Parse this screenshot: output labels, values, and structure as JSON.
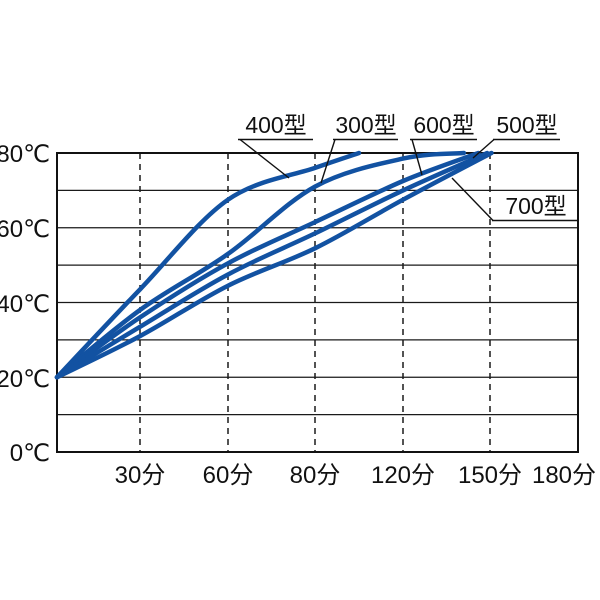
{
  "chart_data": {
    "type": "line",
    "title": "",
    "x_axis": {
      "unit": "分",
      "tick_times": [
        0,
        30,
        60,
        80,
        120,
        150,
        180
      ],
      "tick_labels": [
        "30分",
        "60分",
        "80分",
        "120分",
        "150分",
        "180分"
      ],
      "gridlines_dashed": true
    },
    "y_axis": {
      "unit": "℃",
      "min": 0,
      "max": 80,
      "grid_step": 10,
      "tick_values": [
        80,
        60,
        40,
        20,
        0
      ],
      "tick_labels": [
        "80℃",
        "60℃",
        "40℃",
        "20℃",
        "0℃"
      ]
    },
    "start_temperature_c": 20,
    "line_color": "#1252a2",
    "series": [
      {
        "name": "400型",
        "points": [
          [
            0,
            20
          ],
          [
            30,
            43.5
          ],
          [
            60,
            67.5
          ],
          [
            80,
            76
          ],
          [
            100,
            80
          ]
        ]
      },
      {
        "name": "300型",
        "points": [
          [
            0,
            20
          ],
          [
            30,
            38
          ],
          [
            60,
            53
          ],
          [
            80,
            71
          ],
          [
            120,
            78.5
          ],
          [
            141,
            80
          ]
        ]
      },
      {
        "name": "600型",
        "points": [
          [
            0,
            20
          ],
          [
            30,
            36
          ],
          [
            60,
            50.5
          ],
          [
            80,
            61.5
          ],
          [
            120,
            72.5
          ],
          [
            146,
            80
          ]
        ]
      },
      {
        "name": "500型",
        "points": [
          [
            0,
            20
          ],
          [
            30,
            33.5
          ],
          [
            60,
            47.5
          ],
          [
            80,
            58.5
          ],
          [
            120,
            70
          ],
          [
            149,
            80
          ]
        ]
      },
      {
        "name": "700型",
        "points": [
          [
            0,
            20
          ],
          [
            30,
            31
          ],
          [
            60,
            44.5
          ],
          [
            80,
            54.5
          ],
          [
            120,
            67.5
          ],
          [
            150.5,
            80
          ]
        ]
      }
    ],
    "legend_position": "callouts-on-plot",
    "grid": true
  }
}
